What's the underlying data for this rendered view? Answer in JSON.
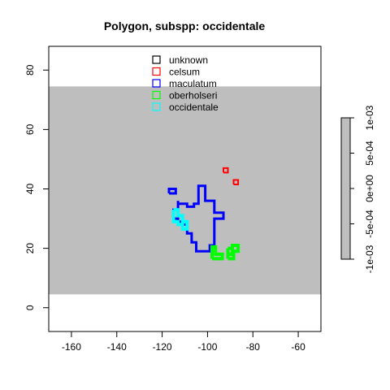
{
  "chart_data": {
    "type": "map",
    "title": "Polygon, subspp: occidentale",
    "xlabel": "",
    "ylabel": "",
    "xlim": [
      -170,
      -50
    ],
    "ylim": [
      -8,
      88
    ],
    "x_ticks": [
      -160,
      -140,
      -120,
      -100,
      -80,
      -60
    ],
    "y_ticks": [
      0,
      20,
      40,
      60,
      80
    ],
    "x_tick_labels": [
      "-160",
      "-140",
      "-120",
      "-100",
      "-80",
      "-60"
    ],
    "y_tick_labels": [
      "0",
      "20",
      "40",
      "60",
      "80"
    ],
    "raster": {
      "ymin": 4.5,
      "ymax": 74.5,
      "value": 0,
      "color": "#bebebe"
    },
    "colorbar": {
      "range": [
        -0.001,
        0.001
      ],
      "ticks": [
        0.001,
        0.0005,
        0,
        -0.0005,
        -0.001
      ],
      "tick_labels": [
        "1e-03",
        "5e-04",
        "0e+00",
        "-5e-04",
        "-1e-03"
      ],
      "color": "#bebebe"
    },
    "legend": {
      "position": "top-center",
      "items": [
        {
          "label": "unknown",
          "color": "#000000"
        },
        {
          "label": "celsum",
          "color": "#ff0000"
        },
        {
          "label": "maculatum",
          "color": "#0000ff"
        },
        {
          "label": "oberholseri",
          "color": "#00ff00"
        },
        {
          "label": "occidentale",
          "color": "#00ffff"
        }
      ]
    },
    "polygons": [
      {
        "name": "maculatum",
        "color": "#0000ff",
        "width": 3,
        "points": [
          [
            -113,
            36
          ],
          [
            -113,
            35
          ],
          [
            -109,
            35
          ],
          [
            -109,
            34
          ],
          [
            -106,
            34
          ],
          [
            -106,
            35
          ],
          [
            -104,
            35
          ],
          [
            -104,
            41
          ],
          [
            -101,
            41
          ],
          [
            -101,
            36
          ],
          [
            -97,
            36
          ],
          [
            -97,
            32
          ],
          [
            -93,
            32
          ],
          [
            -93,
            30
          ],
          [
            -97,
            30
          ],
          [
            -97,
            21
          ],
          [
            -99,
            21
          ],
          [
            -99,
            19
          ],
          [
            -105,
            19
          ],
          [
            -105,
            22
          ],
          [
            -107,
            22
          ],
          [
            -107,
            25
          ],
          [
            -109,
            25
          ],
          [
            -109,
            28
          ],
          [
            -111,
            28
          ],
          [
            -111,
            29
          ],
          [
            -113,
            29
          ],
          [
            -113,
            30
          ],
          [
            -115,
            30
          ],
          [
            -115,
            33
          ],
          [
            -113,
            33
          ],
          [
            -113,
            36
          ]
        ]
      },
      {
        "name": "maculatum",
        "color": "#0000ff",
        "width": 3,
        "points": [
          [
            -117,
            38.5
          ],
          [
            -114,
            38.5
          ],
          [
            -114,
            40
          ],
          [
            -117,
            40
          ],
          [
            -117,
            38.5
          ]
        ]
      },
      {
        "name": "celsum",
        "color": "#ff0000",
        "width": 2,
        "points": [
          [
            -93,
            45.5
          ],
          [
            -91,
            45.5
          ],
          [
            -91,
            47
          ],
          [
            -93,
            47
          ],
          [
            -93,
            45.5
          ]
        ]
      },
      {
        "name": "celsum",
        "color": "#ff0000",
        "width": 2,
        "points": [
          [
            -88.5,
            41.5
          ],
          [
            -86.5,
            41.5
          ],
          [
            -86.5,
            43
          ],
          [
            -88.5,
            43
          ],
          [
            -88.5,
            41.5
          ]
        ]
      },
      {
        "name": "oberholseri",
        "color": "#00ff00",
        "width": 4,
        "points": [
          [
            -98,
            16.5
          ],
          [
            -93.5,
            16.5
          ],
          [
            -93.5,
            18
          ],
          [
            -96.5,
            18
          ],
          [
            -96.5,
            20.5
          ],
          [
            -98,
            20.5
          ],
          [
            -98,
            16.5
          ]
        ]
      },
      {
        "name": "oberholseri",
        "color": "#00ff00",
        "width": 4,
        "points": [
          [
            -91,
            20
          ],
          [
            -89,
            20
          ],
          [
            -89,
            21
          ],
          [
            -86.5,
            21
          ],
          [
            -86.5,
            19
          ],
          [
            -89,
            19
          ],
          [
            -89,
            18
          ],
          [
            -91,
            18
          ],
          [
            -91,
            20
          ]
        ]
      },
      {
        "name": "oberholseri",
        "color": "#00ff00",
        "width": 4,
        "points": [
          [
            -91,
            16.5
          ],
          [
            -88.5,
            16.5
          ],
          [
            -88.5,
            18
          ],
          [
            -91,
            18
          ],
          [
            -91,
            16.5
          ]
        ]
      },
      {
        "name": "occidentale",
        "color": "#00ffff",
        "width": 4,
        "points": [
          [
            -115,
            33
          ],
          [
            -113,
            33
          ],
          [
            -113,
            31
          ],
          [
            -111,
            31
          ],
          [
            -111,
            29
          ],
          [
            -109,
            29
          ],
          [
            -109,
            26.5
          ],
          [
            -111,
            26.5
          ],
          [
            -111,
            28
          ],
          [
            -113,
            28
          ],
          [
            -113,
            29
          ],
          [
            -115,
            29
          ],
          [
            -115,
            33
          ]
        ]
      }
    ]
  }
}
